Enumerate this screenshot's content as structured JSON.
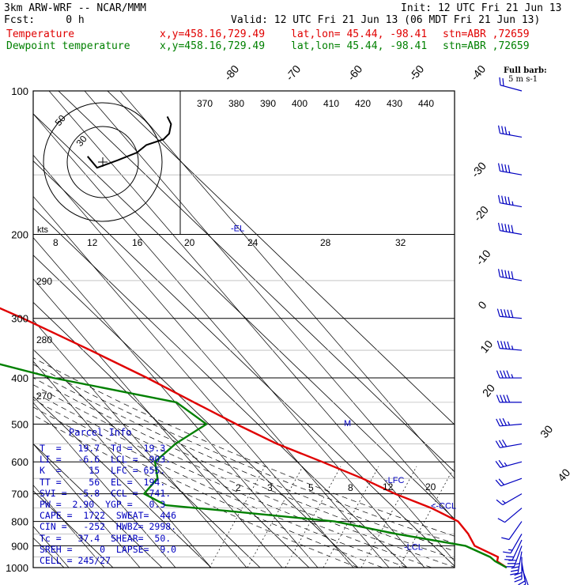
{
  "header": {
    "model": "3km ARW-WRF -- NCAR/MMM",
    "init": "Init: 12 UTC Fri 21 Jun 13",
    "fcst": "Fcst:     0 h",
    "valid": "Valid: 12 UTC Fri 21 Jun 13 (06 MDT Fri 21 Jun 13)",
    "temp_label": "Temperature",
    "dew_label": "Dewpoint temperature",
    "xy": "x,y=458.16,729.49",
    "latlon": "lat,lon= 45.44, -98.41",
    "stn": "stn=ABR ,72659"
  },
  "barb_legend": {
    "line1": "Full barb:",
    "line2": "5 m s-1"
  },
  "parcel_info": {
    "title": "Parcel Info",
    "rows": [
      "T  =   19.7  Td =  19.3",
      "LI =   -6.6  LCL =  903.",
      "K  =     15  LFC = 655.",
      "TT =     56  EL =  194.",
      "SVI =  -5.8  CCL =  741.",
      "PW =  2.90  YGP =   0.3",
      "CAPE =  1722  SWEAT=  446",
      "CIN =   -252  HWBZ= 2998.",
      "Tc =   37.4  SHEAR=  50.",
      "SREH =     0  LAPSE=  9.0",
      "CELL = 245/27"
    ]
  },
  "colors": {
    "temperature": "#e00000",
    "dewpoint": "#008000",
    "stats": "#0000c0",
    "barbs": "#0000c0"
  },
  "chart_data": {
    "type": "line",
    "pressure_levels": [
      100,
      200,
      300,
      400,
      500,
      600,
      700,
      800,
      900,
      1000
    ],
    "series": [
      {
        "name": "Temperature",
        "points": [
          [
            1000,
            20.3
          ],
          [
            970,
            19.7
          ],
          [
            950,
            20.8
          ],
          [
            900,
            18.4
          ],
          [
            850,
            19.6
          ],
          [
            800,
            20.2
          ],
          [
            750,
            17.6
          ],
          [
            700,
            13.2
          ],
          [
            650,
            9.8
          ],
          [
            600,
            5.1
          ],
          [
            550,
            -0.3
          ],
          [
            500,
            -4.4
          ],
          [
            450,
            -8.4
          ],
          [
            400,
            -12.8
          ],
          [
            350,
            -18.5
          ],
          [
            300,
            -25.5
          ],
          [
            250,
            -35
          ],
          [
            200,
            -47
          ],
          [
            175,
            -50.5
          ],
          [
            150,
            -52.5
          ],
          [
            125,
            -55.5
          ],
          [
            100,
            -60
          ]
        ]
      },
      {
        "name": "Dewpoint temperature",
        "points": [
          [
            1000,
            20.3
          ],
          [
            970,
            19.3
          ],
          [
            950,
            19.2
          ],
          [
            900,
            16.5
          ],
          [
            850,
            5
          ],
          [
            800,
            -5
          ],
          [
            760,
            -25
          ],
          [
            740,
            -36
          ],
          [
            700,
            -38
          ],
          [
            650,
            -32
          ],
          [
            600,
            -29
          ],
          [
            550,
            -21
          ],
          [
            500,
            -10.5
          ],
          [
            450,
            -12
          ],
          [
            400,
            -32
          ],
          [
            350,
            -48
          ],
          [
            300,
            -53
          ],
          [
            250,
            -60
          ],
          [
            200,
            -73
          ],
          [
            150,
            -80
          ],
          [
            125,
            -81
          ],
          [
            100,
            -85
          ]
        ]
      }
    ],
    "isotherms": [
      -90,
      -80,
      -70,
      -60,
      -50,
      -40,
      -30,
      -20,
      -10,
      0,
      10,
      20,
      30,
      40
    ],
    "isotherm_labels": [
      "-80",
      "-70",
      "-60",
      "-50",
      "-40",
      "-30",
      "-20",
      "-10",
      "0",
      "10",
      "20",
      "30",
      "40"
    ],
    "theta_labels": [
      "370",
      "380",
      "390",
      "400",
      "410",
      "420",
      "430",
      "440"
    ],
    "theta_left_labels": [
      "290",
      "280",
      "270"
    ],
    "mixing_ratio_labels": [
      "2",
      "3",
      "5",
      "8",
      "12",
      "20"
    ],
    "levels": [
      {
        "label": "-EL",
        "p": 194
      },
      {
        "label": "-LFC",
        "p": 655
      },
      {
        "label": "<-CCL",
        "p": 741
      },
      {
        "label": "-LCL",
        "p": 903
      }
    ],
    "cell_marker": "M",
    "hodograph": {
      "units_label": "kts",
      "ring_labels": [
        "50",
        "30"
      ],
      "speed_axis_labels": [
        "8",
        "12",
        "16",
        "20",
        "24",
        "28",
        "32"
      ],
      "points": [
        [
          -0.8,
          0.3
        ],
        [
          -0.3,
          -0.3
        ],
        [
          0.8,
          0.1
        ],
        [
          1.8,
          0.5
        ],
        [
          2.3,
          0.9
        ],
        [
          3.2,
          1.2
        ],
        [
          3.5,
          1.5
        ],
        [
          3.6,
          2.0
        ],
        [
          3.4,
          2.4
        ]
      ]
    },
    "wind_barbs": [
      [
        1000,
        160,
        10
      ],
      [
        975,
        170,
        20
      ],
      [
        950,
        180,
        30
      ],
      [
        925,
        190,
        35
      ],
      [
        900,
        200,
        30
      ],
      [
        875,
        205,
        20
      ],
      [
        850,
        210,
        15
      ],
      [
        800,
        215,
        10
      ],
      [
        750,
        230,
        10
      ],
      [
        700,
        240,
        15
      ],
      [
        650,
        250,
        20
      ],
      [
        600,
        255,
        25
      ],
      [
        550,
        260,
        30
      ],
      [
        500,
        265,
        35
      ],
      [
        450,
        270,
        40
      ],
      [
        400,
        270,
        45
      ],
      [
        350,
        275,
        45
      ],
      [
        300,
        275,
        50
      ],
      [
        250,
        280,
        50
      ],
      [
        200,
        280,
        50
      ],
      [
        175,
        280,
        45
      ],
      [
        150,
        280,
        40
      ],
      [
        125,
        280,
        35
      ],
      [
        100,
        285,
        20
      ]
    ]
  }
}
